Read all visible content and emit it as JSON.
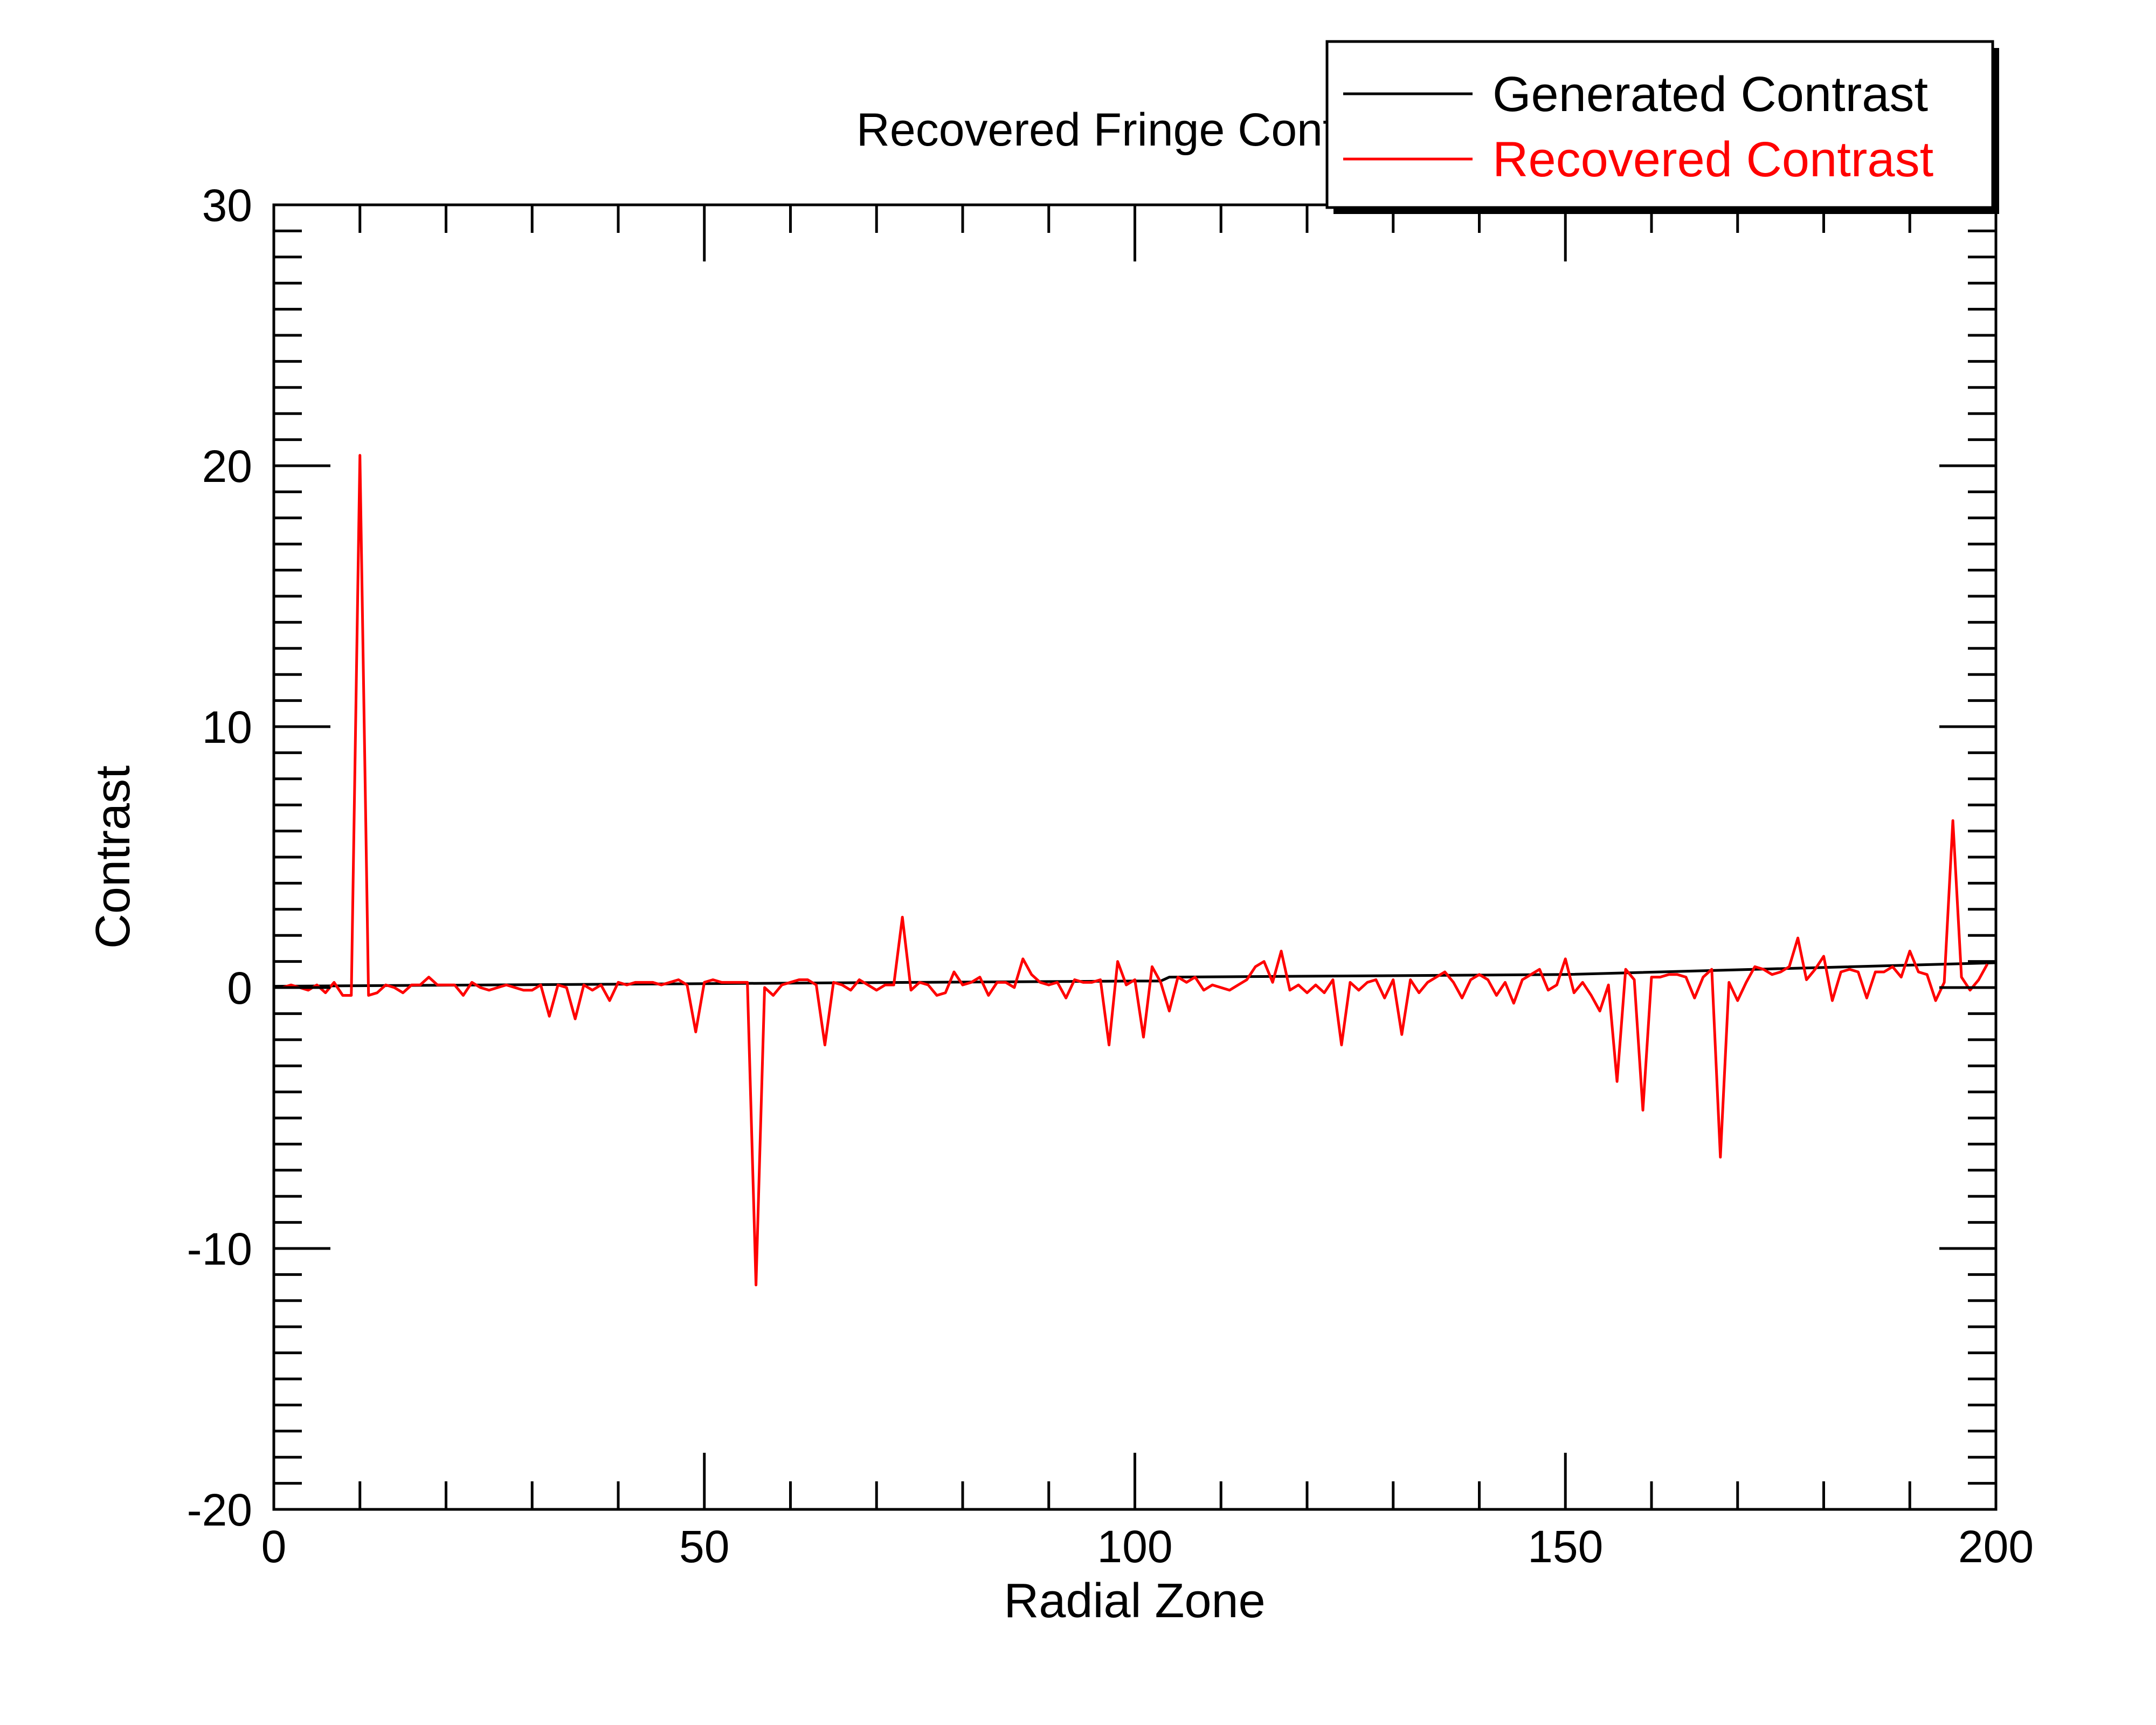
{
  "chart_data": {
    "type": "line",
    "title": "Recovered Fringe Contrast",
    "x_label": "Radial Zone",
    "y_label": "Contrast",
    "xlim": [
      0,
      200
    ],
    "xticks": [
      0,
      50,
      100,
      150,
      200
    ],
    "xminorticks": [
      10,
      20,
      30,
      40,
      60,
      70,
      80,
      90,
      110,
      120,
      130,
      140,
      160,
      170,
      180,
      190
    ],
    "ylim": [
      -20,
      30
    ],
    "yticks": [
      -20,
      -10,
      0,
      10,
      20,
      30
    ],
    "yminorticks": [
      -19,
      -18,
      -17,
      -16,
      -15,
      -14,
      -13,
      -12,
      -11,
      -9,
      -8,
      -7,
      -6,
      -5,
      -4,
      -3,
      -2,
      -1,
      1,
      2,
      3,
      4,
      5,
      6,
      7,
      8,
      9,
      11,
      12,
      13,
      14,
      15,
      16,
      17,
      18,
      19,
      21,
      22,
      23,
      24,
      25,
      26,
      27,
      28,
      29
    ],
    "legend": "top-right",
    "series": [
      {
        "name": "Generated Contrast",
        "color": "#000000",
        "x": [
          0,
          50,
          100,
          103,
          104,
          150,
          200
        ],
        "values": [
          0.05,
          0.15,
          0.25,
          0.25,
          0.4,
          0.5,
          0.95
        ]
      },
      {
        "name": "Recovered Contrast",
        "color": "#ff0000",
        "x": [
          0,
          1,
          2,
          3,
          4,
          5,
          6,
          7,
          8,
          9,
          10,
          11,
          12,
          13,
          14,
          15,
          16,
          17,
          18,
          19,
          20,
          21,
          22,
          23,
          24,
          25,
          26,
          27,
          28,
          29,
          30,
          31,
          32,
          33,
          34,
          35,
          36,
          37,
          38,
          39,
          40,
          41,
          42,
          43,
          44,
          45,
          46,
          47,
          48,
          49,
          50,
          51,
          52,
          53,
          54,
          55,
          56,
          57,
          58,
          59,
          60,
          61,
          62,
          63,
          64,
          65,
          66,
          67,
          68,
          69,
          70,
          71,
          72,
          73,
          74,
          75,
          76,
          77,
          78,
          79,
          80,
          81,
          82,
          83,
          84,
          85,
          86,
          87,
          88,
          89,
          90,
          91,
          92,
          93,
          94,
          95,
          96,
          97,
          98,
          99,
          100,
          101,
          102,
          103,
          104,
          105,
          106,
          107,
          108,
          109,
          110,
          111,
          112,
          113,
          114,
          115,
          116,
          117,
          118,
          119,
          120,
          121,
          122,
          123,
          124,
          125,
          126,
          127,
          128,
          129,
          130,
          131,
          132,
          133,
          134,
          135,
          136,
          137,
          138,
          139,
          140,
          141,
          142,
          143,
          144,
          145,
          146,
          147,
          148,
          149,
          150,
          151,
          152,
          153,
          154,
          155,
          156,
          157,
          158,
          159,
          160,
          161,
          162,
          163,
          164,
          165,
          166,
          167,
          168,
          169,
          170,
          171,
          172,
          173,
          174,
          175,
          176,
          177,
          178,
          179,
          180,
          181,
          182,
          183,
          184,
          185,
          186,
          187,
          188,
          189,
          190,
          191,
          192,
          193,
          194,
          195,
          196,
          197,
          198,
          199
        ],
        "values": [
          0,
          0,
          0.1,
          0,
          -0.1,
          0.1,
          -0.2,
          0.2,
          -0.3,
          -0.3,
          20.4,
          -0.3,
          -0.2,
          0.1,
          0,
          -0.2,
          0.1,
          0.1,
          0.4,
          0.1,
          0.1,
          0.1,
          -0.3,
          0.2,
          0,
          -0.1,
          0,
          0.1,
          0,
          -0.1,
          -0.1,
          0.1,
          -1.1,
          0.1,
          0,
          -1.2,
          0.1,
          -0.1,
          0.1,
          -0.5,
          0.2,
          0.1,
          0.2,
          0.2,
          0.2,
          0.1,
          0.2,
          0.3,
          0.1,
          -1.7,
          0.2,
          0.3,
          0.2,
          0.2,
          0.2,
          0.2,
          -11.4,
          0,
          -0.3,
          0.1,
          0.2,
          0.3,
          0.3,
          0.1,
          -2.2,
          0.2,
          0.1,
          -0.1,
          0.3,
          0.1,
          -0.1,
          0.1,
          0.1,
          2.7,
          -0.1,
          0.2,
          0.1,
          -0.3,
          -0.2,
          0.6,
          0.1,
          0.2,
          0.4,
          -0.3,
          0.2,
          0.2,
          0,
          1.1,
          0.5,
          0.2,
          0.1,
          0.2,
          -0.4,
          0.3,
          0.2,
          0.2,
          0.3,
          -2.2,
          1.0,
          0.1,
          0.3,
          -1.9,
          0.8,
          0.2,
          -0.9,
          0.4,
          0.2,
          0.4,
          -0.1,
          0.1,
          0,
          -0.1,
          0.1,
          0.3,
          0.8,
          1.0,
          0.2,
          1.4,
          -0.1,
          0.1,
          -0.2,
          0.1,
          -0.2,
          0.3,
          -2.2,
          0.2,
          -0.1,
          0.2,
          0.3,
          -0.4,
          0.3,
          -1.8,
          0.3,
          -0.2,
          0.2,
          0.4,
          0.6,
          0.2,
          -0.4,
          0.3,
          0.5,
          0.3,
          -0.3,
          0.2,
          -0.6,
          0.3,
          0.5,
          0.7,
          -0.1,
          0.1,
          1.1,
          -0.2,
          0.2,
          -0.3,
          -0.9,
          0.1,
          -3.6,
          0.7,
          0.3,
          -4.7,
          0.4,
          0.4,
          0.5,
          0.5,
          0.4,
          -0.4,
          0.4,
          0.7,
          -6.5,
          0.2,
          -0.5,
          0.2,
          0.8,
          0.7,
          0.5,
          0.6,
          0.8,
          1.9,
          0.3,
          0.7,
          1.2,
          -0.5,
          0.6,
          0.7,
          0.6,
          -0.4,
          0.6,
          0.6,
          0.8,
          0.4,
          1.4,
          0.6,
          0.5,
          -0.5,
          0.2,
          6.4,
          0.4,
          -0.1,
          0.3,
          0.9
        ]
      }
    ]
  }
}
